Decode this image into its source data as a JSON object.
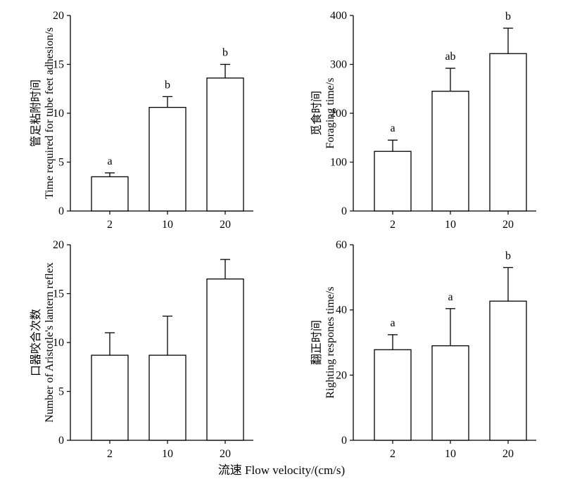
{
  "xlabel": "流速 Flow velocity/(cm/s)",
  "chart_data": [
    {
      "type": "bar",
      "categories": [
        "2",
        "10",
        "20"
      ],
      "values": [
        3.5,
        10.6,
        13.6
      ],
      "errors": [
        0.4,
        1.1,
        1.4
      ],
      "significance": [
        "a",
        "b",
        "b"
      ],
      "ylabel_cn": "管足粘附时间",
      "ylabel_en": "Time required for tube feet adhesion/s",
      "ylim": [
        0,
        20
      ],
      "yticks": [
        "0",
        "5",
        "10",
        "15",
        "20"
      ]
    },
    {
      "type": "bar",
      "categories": [
        "2",
        "10",
        "20"
      ],
      "values": [
        122,
        245,
        322
      ],
      "errors": [
        23,
        47,
        52
      ],
      "significance": [
        "a",
        "ab",
        "b"
      ],
      "ylabel_cn": "觅食时间",
      "ylabel_en": "Foraging time/s",
      "ylim": [
        0,
        400
      ],
      "yticks": [
        "0",
        "100",
        "200",
        "300",
        "400"
      ]
    },
    {
      "type": "bar",
      "categories": [
        "2",
        "10",
        "20"
      ],
      "values": [
        8.7,
        8.7,
        16.5
      ],
      "errors": [
        2.3,
        4.0,
        2.0
      ],
      "significance": [
        "",
        "",
        ""
      ],
      "ylabel_cn": "口器咬合次数",
      "ylabel_en": "Number of Aristotle's lantern reflex",
      "ylim": [
        0,
        20
      ],
      "yticks": [
        "0",
        "5",
        "10",
        "15",
        "20"
      ]
    },
    {
      "type": "bar",
      "categories": [
        "2",
        "10",
        "20"
      ],
      "values": [
        27.8,
        29.0,
        42.7
      ],
      "errors": [
        4.6,
        11.4,
        10.3
      ],
      "significance": [
        "a",
        "a",
        "b"
      ],
      "ylabel_cn": "翻正时间",
      "ylabel_en": "Righting respones time/s",
      "ylim": [
        0,
        60
      ],
      "yticks": [
        "0",
        "20",
        "40",
        "60"
      ]
    }
  ]
}
